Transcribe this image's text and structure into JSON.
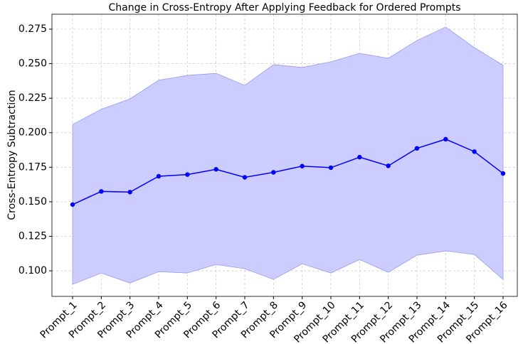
{
  "chart_data": {
    "type": "line",
    "title": "Change in Cross-Entropy After Applying Feedback for Ordered Prompts",
    "ylabel": "Cross-Entropy Subtraction",
    "categories": [
      "Prompt_1",
      "Prompt_2",
      "Prompt_3",
      "Prompt_4",
      "Prompt_5",
      "Prompt_6",
      "Prompt_7",
      "Prompt_8",
      "Prompt_9",
      "Prompt_10",
      "Prompt_11",
      "Prompt_12",
      "Prompt_13",
      "Prompt_14",
      "Prompt_15",
      "Prompt_16"
    ],
    "values": [
      0.148,
      0.1575,
      0.157,
      0.1685,
      0.1697,
      0.1735,
      0.1677,
      0.1713,
      0.1758,
      0.1747,
      0.1823,
      0.176,
      0.1887,
      0.1953,
      0.1863,
      0.1705
    ],
    "upper": [
      0.206,
      0.217,
      0.2245,
      0.238,
      0.2415,
      0.243,
      0.2343,
      0.2493,
      0.2473,
      0.2513,
      0.2575,
      0.2539,
      0.2668,
      0.2765,
      0.2616,
      0.2488
    ],
    "lower": [
      0.0902,
      0.0984,
      0.0912,
      0.0994,
      0.0984,
      0.1046,
      0.1015,
      0.0938,
      0.1051,
      0.0984,
      0.1082,
      0.0989,
      0.1113,
      0.1144,
      0.1118,
      0.0938
    ],
    "color": "#0000ff",
    "band_color": "#ccccff",
    "ylim": [
      0.0815,
      0.2858
    ],
    "yticks": [
      {
        "value": 0.1,
        "label": "0.100"
      },
      0.125,
      {
        "value": 0.15,
        "label": "0.150"
      },
      0.175,
      {
        "value": 0.2,
        "label": "0.200"
      },
      0.225,
      {
        "value": 0.25,
        "label": "0.250"
      },
      0.275
    ],
    "grid": true
  }
}
